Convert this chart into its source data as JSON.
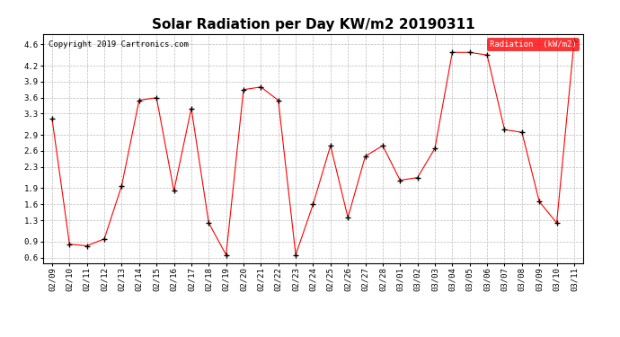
{
  "title": "Solar Radiation per Day KW/m2 20190311",
  "copyright": "Copyright 2019 Cartronics.com",
  "legend_label": "Radiation  (kW/m2)",
  "dates": [
    "02/09",
    "02/10",
    "02/11",
    "02/12",
    "02/13",
    "02/14",
    "02/15",
    "02/16",
    "02/17",
    "02/18",
    "02/19",
    "02/20",
    "02/21",
    "02/22",
    "02/23",
    "02/24",
    "02/25",
    "02/26",
    "02/27",
    "02/28",
    "03/01",
    "03/02",
    "03/03",
    "03/04",
    "03/05",
    "03/06",
    "03/07",
    "03/08",
    "03/09",
    "03/10",
    "03/11"
  ],
  "values": [
    3.2,
    0.85,
    0.82,
    0.95,
    1.95,
    3.55,
    3.6,
    1.85,
    3.4,
    1.25,
    0.65,
    3.75,
    3.8,
    3.55,
    0.65,
    1.6,
    2.7,
    1.35,
    2.5,
    2.7,
    2.05,
    2.1,
    2.65,
    4.45,
    4.45,
    4.4,
    3.0,
    2.95,
    1.65,
    1.25,
    4.65
  ],
  "line_color": "#ff0000",
  "marker_color": "#000000",
  "bg_color": "#ffffff",
  "grid_color": "#bbbbbb",
  "ylim": [
    0.5,
    4.8
  ],
  "yticks": [
    0.6,
    0.9,
    1.3,
    1.6,
    1.9,
    2.3,
    2.6,
    2.9,
    3.3,
    3.6,
    3.9,
    4.2,
    4.6
  ],
  "legend_bg": "#ff0000",
  "legend_text_color": "#ffffff",
  "title_fontsize": 11,
  "tick_fontsize": 6.5,
  "copyright_fontsize": 6.5
}
